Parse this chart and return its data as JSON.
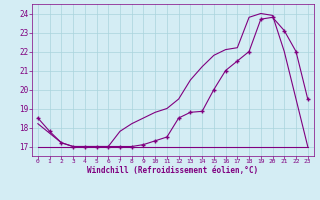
{
  "xlabel": "Windchill (Refroidissement éolien,°C)",
  "bg_color": "#d4edf4",
  "line_color": "#800080",
  "grid_color": "#aad4dd",
  "xlim": [
    -0.5,
    23.5
  ],
  "ylim": [
    16.5,
    24.5
  ],
  "yticks": [
    17,
    18,
    19,
    20,
    21,
    22,
    23,
    24
  ],
  "xticks": [
    0,
    1,
    2,
    3,
    4,
    5,
    6,
    7,
    8,
    9,
    10,
    11,
    12,
    13,
    14,
    15,
    16,
    17,
    18,
    19,
    20,
    21,
    22,
    23
  ],
  "line1_x": [
    0,
    1,
    2,
    3,
    4,
    5,
    6,
    7,
    8,
    9,
    10,
    11,
    12,
    13,
    14,
    15,
    16,
    17,
    18,
    19,
    20,
    21,
    22,
    23
  ],
  "line1_y": [
    18.5,
    17.8,
    17.2,
    17.0,
    17.0,
    17.0,
    17.0,
    17.0,
    17.0,
    17.1,
    17.3,
    17.5,
    18.5,
    18.8,
    18.85,
    20.0,
    21.0,
    21.5,
    22.0,
    23.7,
    23.8,
    23.1,
    22.0,
    19.5
  ],
  "line2_x": [
    0,
    1,
    2,
    3,
    4,
    5,
    6,
    7,
    8,
    9,
    10,
    11,
    12,
    13,
    14,
    15,
    16,
    17,
    18,
    19,
    20,
    21,
    22,
    23
  ],
  "line2_y": [
    18.2,
    17.7,
    17.2,
    17.0,
    17.0,
    17.0,
    17.0,
    17.8,
    18.2,
    18.5,
    18.8,
    19.0,
    19.5,
    20.5,
    21.2,
    21.8,
    22.1,
    22.2,
    23.8,
    24.0,
    23.9,
    22.0,
    19.5,
    17.0
  ],
  "line3_x": [
    0,
    23
  ],
  "line3_y": [
    17.0,
    17.0
  ]
}
